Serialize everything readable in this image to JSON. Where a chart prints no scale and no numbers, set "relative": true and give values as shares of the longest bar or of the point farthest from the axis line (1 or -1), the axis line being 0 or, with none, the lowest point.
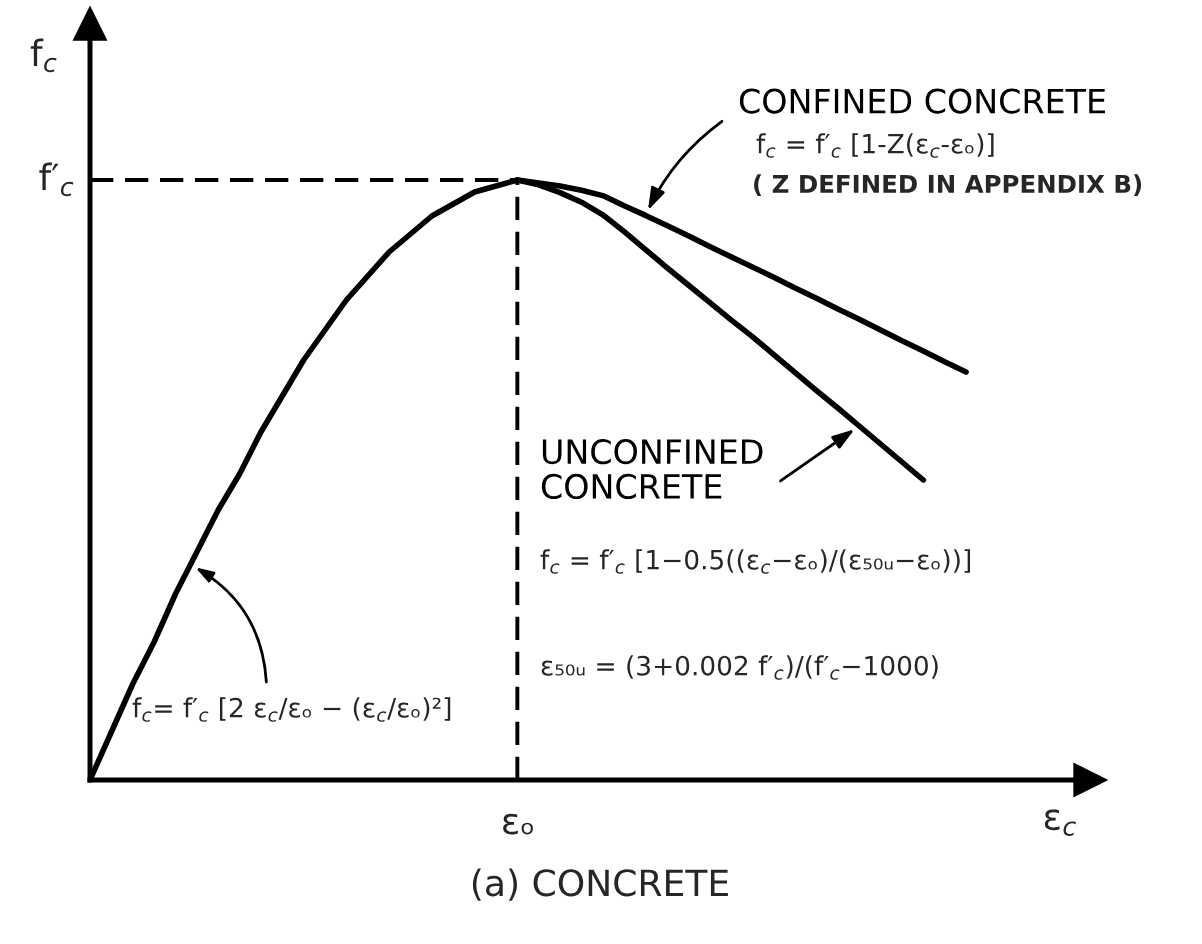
{
  "chart_data": {
    "type": "line",
    "relative": true,
    "title": "(a) CONCRETE",
    "xlabel": "ε$_{c}$",
    "ylabel": "f$_{c}$",
    "categories": [
      null,
      null,
      null,
      null,
      null,
      null,
      null,
      null,
      null,
      null,
      null,
      null,
      null,
      null,
      null,
      null,
      null,
      null,
      null,
      null,
      null,
      null,
      null,
      null,
      null,
      null,
      null,
      null,
      null,
      null,
      null,
      null,
      null,
      null,
      null,
      null,
      null,
      null,
      null,
      null,
      null,
      null,
      null,
      null,
      null,
      null,
      null
    ],
    "series": [
      {
        "name": "CONFINED CONCRETE",
        "color": "#000000",
        "values": [
          0,
          0.08,
          0.16,
          0.23,
          0.31,
          0.38,
          0.45,
          0.51,
          0.58,
          0.64,
          0.7,
          0.75,
          0.8,
          0.84,
          0.88,
          0.91,
          0.94,
          0.96,
          0.98,
          0.99,
          1,
          0.995,
          0.99,
          0.983,
          0.974,
          0.957,
          0.941,
          0.924,
          0.907,
          0.889,
          0.872,
          0.855,
          0.838,
          0.82,
          0.803,
          0.785,
          0.768,
          0.75,
          0.732,
          0.715,
          0.697,
          0.68,
          null,
          null,
          null,
          null,
          null
        ]
      },
      {
        "name": "UNCONFINED\nCONCRETE",
        "color": "#000000",
        "values": [
          null,
          null,
          null,
          null,
          null,
          null,
          null,
          null,
          null,
          null,
          null,
          null,
          null,
          null,
          null,
          null,
          null,
          null,
          null,
          null,
          1,
          0.992,
          0.979,
          0.963,
          0.942,
          0.914,
          0.884,
          0.854,
          0.825,
          0.796,
          0.767,
          0.739,
          0.709,
          0.679,
          0.649,
          0.62,
          0.59,
          0.56,
          0.53,
          0.5,
          null,
          null,
          null,
          null,
          null,
          null,
          null
        ]
      }
    ],
    "ref_lines": [
      {
        "axis": "y",
        "value": 1,
        "label": "f′$_{c}$",
        "line_style": "dashed"
      }
    ],
    "annotations": [
      "f$_{c}$= f′$_{c}$ [2 ε$_{c}$/εₒ − (ε$_{c}$/εₒ)²]",
      "f$_{c}$ = f′$_{c}$ [1-Z(ε$_{c}$-εₒ)]",
      "( Z DEFINED IN APPENDIX B)",
      "f$_{c}$ = f′$_{c}$ [1−0.5((ε$_{c}$−εₒ)/(ε₅₀ᵤ−εₒ))]",
      "ε₅₀ᵤ = (3+0.002 f′$_{c}$)/(f′$_{c}$−1000)",
      "εₒ"
    ]
  }
}
